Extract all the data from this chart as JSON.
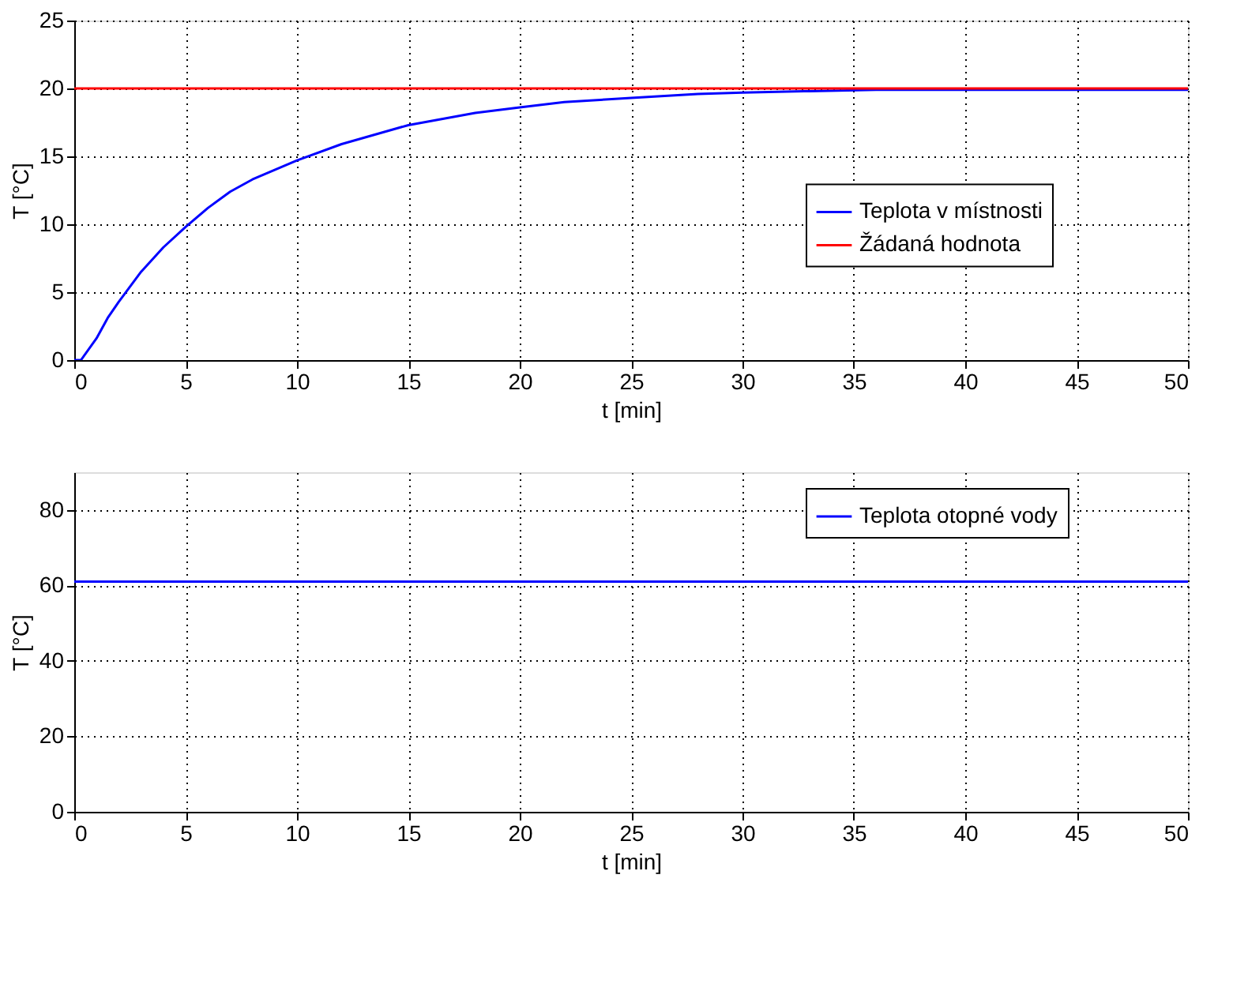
{
  "chart_data": [
    {
      "type": "line",
      "xlabel": "t [min]",
      "ylabel": "T [°C]",
      "xlim": [
        0,
        50
      ],
      "ylim": [
        0,
        25
      ],
      "xticks": [
        0,
        5,
        10,
        15,
        20,
        25,
        30,
        35,
        40,
        45,
        50
      ],
      "yticks": [
        0,
        5,
        10,
        15,
        20,
        25
      ],
      "grid": true,
      "legend": "right",
      "marker": "none",
      "line_style": "solid",
      "series": [
        {
          "name": "Teplota v místnosti",
          "color": "#0000ff",
          "x": [
            0,
            0.3,
            1,
            1.5,
            2,
            3,
            4,
            5,
            6,
            7,
            8,
            10,
            12,
            15,
            18,
            20,
            22,
            25,
            28,
            30,
            33,
            36,
            40,
            45,
            50
          ],
          "values": [
            0,
            0,
            1.6,
            3.1,
            4.3,
            6.5,
            8.3,
            9.8,
            11.2,
            12.4,
            13.3,
            14.7,
            15.9,
            17.3,
            18.2,
            18.6,
            19.0,
            19.3,
            19.6,
            19.7,
            19.8,
            19.9,
            19.9,
            19.9,
            19.9
          ]
        },
        {
          "name": "Žádaná hodnota",
          "color": "#ff0000",
          "x": [
            0,
            50
          ],
          "values": [
            20,
            20
          ]
        }
      ]
    },
    {
      "type": "line",
      "xlabel": "t [min]",
      "ylabel": "T [°C]",
      "xlim": [
        0,
        50
      ],
      "ylim": [
        0,
        90
      ],
      "xticks": [
        0,
        5,
        10,
        15,
        20,
        25,
        30,
        35,
        40,
        45,
        50
      ],
      "yticks": [
        0,
        20,
        40,
        60,
        80
      ],
      "grid": true,
      "legend": "top right",
      "marker": "none",
      "line_style": "solid",
      "series": [
        {
          "name": "Teplota otopné vody",
          "color": "#0000ff",
          "x": [
            0,
            50
          ],
          "values": [
            61,
            61
          ]
        }
      ]
    }
  ]
}
